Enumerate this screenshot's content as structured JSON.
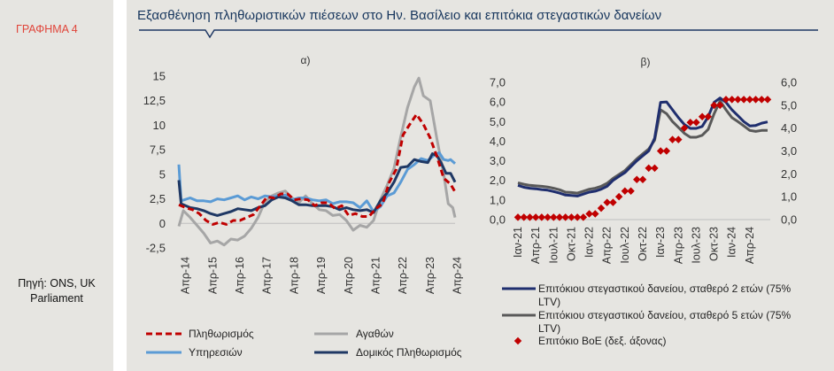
{
  "header": {
    "figure_label": "ΓΡΑΦΗΜΑ 4",
    "title": "Εξασθένηση πληθωριστικών πιέσεων στο Ην. Βασίλειο  και επιτόκια στεγαστικών δανείων"
  },
  "source": {
    "line1": "Πηγή: ONS, UK",
    "line2": "Parliament"
  },
  "colors": {
    "title": "#17365d",
    "label_red": "#e0453a",
    "background": "#e6e5e1",
    "inflation": "#c00000",
    "goods": "#a6a6a6",
    "services": "#5b9bd5",
    "housing": "#1f3864",
    "mortgage2y": "#1f2e6e",
    "mortgage5y": "#595959",
    "boe": "#c00000"
  },
  "chart_data": [
    {
      "type": "line",
      "panel_label": "α)",
      "x_ticks": [
        "Απρ-14",
        "Απρ-15",
        "Απρ-16",
        "Απρ-17",
        "Απρ-18",
        "Απρ-19",
        "Απρ-20",
        "Απρ-21",
        "Απρ-22",
        "Απρ-23",
        "Απρ-24"
      ],
      "x_range": [
        "2014-01",
        "2024-03"
      ],
      "ylim": [
        -2.5,
        15
      ],
      "y_ticks": [
        "15",
        "12,5",
        "10",
        "7,5",
        "5",
        "2,5",
        "0",
        "-2,5"
      ],
      "y_tick_values": [
        15,
        12.5,
        10,
        7.5,
        5,
        2.5,
        0,
        -2.5
      ],
      "grid": false,
      "legend_position": "bottom",
      "series": [
        {
          "name": "Πληθωρισμός",
          "style": "dashed",
          "points": [
            [
              "2014-01",
              1.9
            ],
            [
              "2014-04",
              1.6
            ],
            [
              "2014-07",
              1.4
            ],
            [
              "2014-10",
              1.0
            ],
            [
              "2015-01",
              0.3
            ],
            [
              "2015-04",
              -0.1
            ],
            [
              "2015-07",
              0.1
            ],
            [
              "2015-10",
              -0.1
            ],
            [
              "2016-01",
              0.3
            ],
            [
              "2016-04",
              0.3
            ],
            [
              "2016-07",
              0.6
            ],
            [
              "2016-10",
              0.9
            ],
            [
              "2017-01",
              1.8
            ],
            [
              "2017-04",
              2.7
            ],
            [
              "2017-07",
              2.6
            ],
            [
              "2017-10",
              3.0
            ],
            [
              "2018-01",
              3.0
            ],
            [
              "2018-04",
              2.4
            ],
            [
              "2018-07",
              2.5
            ],
            [
              "2018-10",
              2.4
            ],
            [
              "2019-01",
              1.8
            ],
            [
              "2019-04",
              2.1
            ],
            [
              "2019-07",
              2.1
            ],
            [
              "2019-10",
              1.5
            ],
            [
              "2020-01",
              1.8
            ],
            [
              "2020-04",
              0.8
            ],
            [
              "2020-07",
              1.0
            ],
            [
              "2020-10",
              0.7
            ],
            [
              "2021-01",
              0.7
            ],
            [
              "2021-04",
              1.5
            ],
            [
              "2021-07",
              2.0
            ],
            [
              "2021-10",
              4.2
            ],
            [
              "2022-01",
              5.5
            ],
            [
              "2022-04",
              9.0
            ],
            [
              "2022-07",
              10.1
            ],
            [
              "2022-10",
              11.1
            ],
            [
              "2023-01",
              10.1
            ],
            [
              "2023-04",
              8.7
            ],
            [
              "2023-07",
              6.8
            ],
            [
              "2023-10",
              4.6
            ],
            [
              "2024-01",
              4.0
            ],
            [
              "2024-03",
              3.2
            ]
          ]
        },
        {
          "name": "Αγαθών",
          "style": "solid",
          "points": [
            [
              "2014-01",
              -0.3
            ],
            [
              "2014-03",
              1.3
            ],
            [
              "2014-06",
              0.6
            ],
            [
              "2014-09",
              -0.2
            ],
            [
              "2014-12",
              -1.0
            ],
            [
              "2015-03",
              -2.0
            ],
            [
              "2015-06",
              -1.8
            ],
            [
              "2015-09",
              -2.2
            ],
            [
              "2015-12",
              -1.6
            ],
            [
              "2016-03",
              -1.7
            ],
            [
              "2016-06",
              -1.3
            ],
            [
              "2016-09",
              -0.5
            ],
            [
              "2016-12",
              0.6
            ],
            [
              "2017-03",
              2.2
            ],
            [
              "2017-06",
              2.8
            ],
            [
              "2017-09",
              3.1
            ],
            [
              "2017-12",
              3.3
            ],
            [
              "2018-03",
              2.6
            ],
            [
              "2018-06",
              2.1
            ],
            [
              "2018-09",
              2.8
            ],
            [
              "2018-12",
              2.0
            ],
            [
              "2019-03",
              1.4
            ],
            [
              "2019-06",
              1.3
            ],
            [
              "2019-09",
              0.8
            ],
            [
              "2019-12",
              0.9
            ],
            [
              "2020-03",
              0.3
            ],
            [
              "2020-06",
              -0.7
            ],
            [
              "2020-09",
              -0.2
            ],
            [
              "2020-12",
              -0.4
            ],
            [
              "2021-03",
              0.3
            ],
            [
              "2021-06",
              2.4
            ],
            [
              "2021-09",
              3.9
            ],
            [
              "2021-12",
              5.6
            ],
            [
              "2022-03",
              8.8
            ],
            [
              "2022-06",
              11.8
            ],
            [
              "2022-09",
              13.9
            ],
            [
              "2022-11",
              14.8
            ],
            [
              "2023-01",
              13.0
            ],
            [
              "2023-04",
              12.5
            ],
            [
              "2023-07",
              8.6
            ],
            [
              "2023-10",
              5.0
            ],
            [
              "2023-12",
              2.0
            ],
            [
              "2024-01",
              1.8
            ],
            [
              "2024-02",
              1.6
            ],
            [
              "2024-03",
              0.6
            ]
          ]
        },
        {
          "name": "Υπηρεσιών",
          "style": "solid",
          "points": [
            [
              "2014-01",
              6.0
            ],
            [
              "2014-02",
              2.3
            ],
            [
              "2014-06",
              2.6
            ],
            [
              "2014-09",
              2.3
            ],
            [
              "2014-12",
              2.3
            ],
            [
              "2015-03",
              2.2
            ],
            [
              "2015-06",
              2.5
            ],
            [
              "2015-09",
              2.4
            ],
            [
              "2015-12",
              2.6
            ],
            [
              "2016-03",
              2.8
            ],
            [
              "2016-06",
              2.4
            ],
            [
              "2016-09",
              2.7
            ],
            [
              "2016-12",
              2.5
            ],
            [
              "2017-03",
              2.8
            ],
            [
              "2017-06",
              2.7
            ],
            [
              "2017-09",
              2.8
            ],
            [
              "2017-12",
              2.9
            ],
            [
              "2018-03",
              2.4
            ],
            [
              "2018-06",
              2.6
            ],
            [
              "2018-09",
              2.6
            ],
            [
              "2018-12",
              2.4
            ],
            [
              "2019-03",
              2.3
            ],
            [
              "2019-06",
              2.4
            ],
            [
              "2019-09",
              2.0
            ],
            [
              "2019-12",
              2.2
            ],
            [
              "2020-03",
              2.2
            ],
            [
              "2020-06",
              2.1
            ],
            [
              "2020-09",
              1.6
            ],
            [
              "2020-12",
              2.3
            ],
            [
              "2021-03",
              1.2
            ],
            [
              "2021-06",
              1.7
            ],
            [
              "2021-09",
              2.8
            ],
            [
              "2021-12",
              3.1
            ],
            [
              "2022-03",
              4.2
            ],
            [
              "2022-06",
              5.5
            ],
            [
              "2022-09",
              6.0
            ],
            [
              "2022-12",
              6.6
            ],
            [
              "2023-03",
              6.4
            ],
            [
              "2023-06",
              7.0
            ],
            [
              "2023-08",
              7.2
            ],
            [
              "2023-10",
              6.5
            ],
            [
              "2023-12",
              6.4
            ],
            [
              "2024-01",
              6.5
            ],
            [
              "2024-03",
              6.1
            ]
          ]
        },
        {
          "name": "Δομικός Πληθωρισμός",
          "style": "solid",
          "points": [
            [
              "2014-01",
              4.4
            ],
            [
              "2014-02",
              2.0
            ],
            [
              "2014-06",
              1.6
            ],
            [
              "2014-09",
              1.5
            ],
            [
              "2014-12",
              1.3
            ],
            [
              "2015-03",
              1.0
            ],
            [
              "2015-06",
              0.8
            ],
            [
              "2015-09",
              1.0
            ],
            [
              "2015-12",
              1.2
            ],
            [
              "2016-03",
              1.5
            ],
            [
              "2016-06",
              1.4
            ],
            [
              "2016-09",
              1.3
            ],
            [
              "2016-12",
              1.6
            ],
            [
              "2017-03",
              1.8
            ],
            [
              "2017-06",
              2.4
            ],
            [
              "2017-09",
              2.7
            ],
            [
              "2017-12",
              2.6
            ],
            [
              "2018-03",
              2.3
            ],
            [
              "2018-06",
              1.9
            ],
            [
              "2018-09",
              1.9
            ],
            [
              "2018-12",
              1.8
            ],
            [
              "2019-03",
              1.8
            ],
            [
              "2019-06",
              1.8
            ],
            [
              "2019-09",
              1.7
            ],
            [
              "2019-12",
              1.4
            ],
            [
              "2020-03",
              1.6
            ],
            [
              "2020-06",
              1.4
            ],
            [
              "2020-09",
              1.3
            ],
            [
              "2020-12",
              1.4
            ],
            [
              "2021-03",
              1.1
            ],
            [
              "2021-06",
              2.3
            ],
            [
              "2021-09",
              3.1
            ],
            [
              "2021-12",
              4.2
            ],
            [
              "2022-03",
              5.7
            ],
            [
              "2022-06",
              5.8
            ],
            [
              "2022-09",
              6.5
            ],
            [
              "2022-12",
              6.3
            ],
            [
              "2023-03",
              6.2
            ],
            [
              "2023-05",
              7.1
            ],
            [
              "2023-07",
              6.9
            ],
            [
              "2023-09",
              6.1
            ],
            [
              "2023-11",
              5.1
            ],
            [
              "2024-01",
              5.1
            ],
            [
              "2024-03",
              4.2
            ]
          ]
        }
      ]
    },
    {
      "type": "line",
      "panel_label": "β)",
      "x_ticks": [
        "Ιαν-21",
        "Απρ-21",
        "Ιουλ-21",
        "Οκτ-21",
        "Ιαν-22",
        "Απρ-22",
        "Ιουλ-22",
        "Οκτ-22",
        "Ιαν-23",
        "Απρ-23",
        "Ιουλ-23",
        "Οκτ-23",
        "Ιαν-24",
        "Απρ-24"
      ],
      "ylim": [
        0,
        7
      ],
      "y_ticks": [
        "7,0",
        "6,0",
        "5,0",
        "4,0",
        "3,0",
        "2,0",
        "1,0",
        "0,0"
      ],
      "y_tick_values": [
        7,
        6,
        5,
        4,
        3,
        2,
        1,
        0
      ],
      "y2lim": [
        0,
        6
      ],
      "y2_ticks": [
        "6,0",
        "5,0",
        "4,0",
        "3,0",
        "2,0",
        "1,0",
        "0,0"
      ],
      "y2_tick_values": [
        6,
        5,
        4,
        3,
        2,
        1,
        0
      ],
      "grid": false,
      "legend_position": "bottom",
      "series": [
        {
          "name": "Επιτόκιου στεγαστικού δανείου, σταθερό 2 ετών (75% LTV)",
          "axis": "left",
          "values": [
            1.75,
            1.65,
            1.6,
            1.57,
            1.53,
            1.5,
            1.43,
            1.35,
            1.25,
            1.23,
            1.2,
            1.3,
            1.4,
            1.45,
            1.55,
            1.7,
            2.0,
            2.2,
            2.4,
            2.7,
            3.0,
            3.25,
            3.5,
            4.15,
            5.98,
            6.0,
            5.6,
            5.2,
            4.85,
            4.65,
            4.65,
            4.75,
            5.25,
            5.98,
            6.2,
            5.98,
            5.6,
            5.3,
            5.0,
            4.78,
            4.8,
            4.92,
            4.98
          ]
        },
        {
          "name": "Επιτόκιου στεγαστικού δανείου, σταθερό 5 ετών (75% LTV)",
          "axis": "left",
          "values": [
            1.88,
            1.8,
            1.75,
            1.72,
            1.7,
            1.66,
            1.6,
            1.52,
            1.4,
            1.38,
            1.35,
            1.45,
            1.55,
            1.6,
            1.7,
            1.85,
            2.1,
            2.3,
            2.5,
            2.8,
            3.1,
            3.35,
            3.6,
            4.05,
            5.6,
            5.4,
            5.0,
            4.7,
            4.4,
            4.2,
            4.2,
            4.3,
            4.6,
            5.4,
            6.05,
            5.6,
            5.2,
            5.0,
            4.78,
            4.55,
            4.5,
            4.55,
            4.55
          ]
        },
        {
          "name": "Επιτόκιο BoE (δεξ. άξονας)",
          "axis": "right",
          "style": "markers",
          "values": [
            0.1,
            0.1,
            0.1,
            0.1,
            0.1,
            0.1,
            0.1,
            0.1,
            0.1,
            0.1,
            0.1,
            0.1,
            0.25,
            0.25,
            0.5,
            0.75,
            0.75,
            1.0,
            1.25,
            1.25,
            1.75,
            1.75,
            2.25,
            2.25,
            3.0,
            3.0,
            3.5,
            3.5,
            4.0,
            4.25,
            4.25,
            4.5,
            4.5,
            5.0,
            5.0,
            5.25,
            5.25,
            5.25,
            5.25,
            5.25,
            5.25,
            5.25,
            5.25
          ]
        }
      ]
    }
  ]
}
